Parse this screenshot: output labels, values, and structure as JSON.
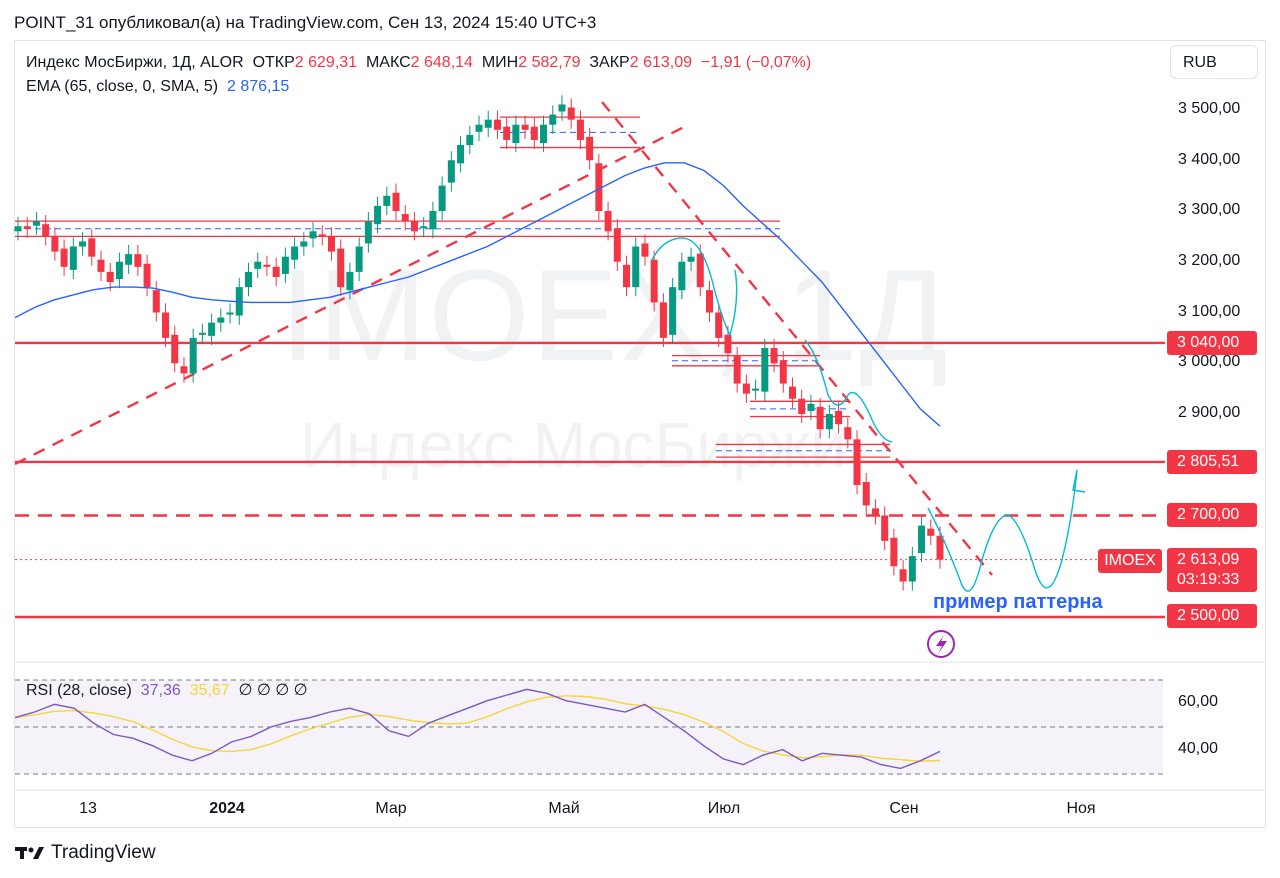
{
  "header": "POINT_31 опубликовал(а) на TradingView.com, Сен 13, 2024 15:40 UTC+3",
  "legend": {
    "symbol": "Индекс МосБиржи, 1Д, ALOR",
    "open_label": "ОТКР",
    "open": "2 629,31",
    "high_label": "МАКС",
    "high": "2 648,14",
    "low_label": "МИН",
    "low": "2 582,79",
    "close_label": "ЗАКР",
    "close": "2 613,09",
    "change": "−1,91 (−0,07%)",
    "ema_label": "EMA (65, close, 0, SMA, 5)",
    "ema_value": "2 876,15"
  },
  "currency": "RUB",
  "watermark": {
    "ticker": "IMOEX, 1Д",
    "name": "Индекс МосБиржи"
  },
  "price_axis": [
    "3 500,00",
    "3 400,00",
    "3 300,00",
    "3 200,00",
    "3 100,00",
    "3 000,00",
    "2 900,00"
  ],
  "price_tags": {
    "level_3040": "3 040,00",
    "level_2805": "2 805,51",
    "level_2700": "2 700,00",
    "last": "2 613,09",
    "countdown": "03:19:33",
    "level_2500": "2 500,00",
    "symbol_tag": "IMOEX"
  },
  "annotation": "пример паттерна",
  "rsi": {
    "label": "RSI (28, close)",
    "value1": "37,36",
    "value2": "35,67",
    "extras": "∅ ∅ ∅ ∅",
    "axis": [
      "60,00",
      "40,00"
    ]
  },
  "time_axis": [
    "13",
    "2024",
    "Мар",
    "Май",
    "Июл",
    "Сен",
    "Ноя"
  ],
  "footer": "TradingView",
  "colors": {
    "up": "#089981",
    "down": "#f23645",
    "ema": "#2962ff",
    "rsi": "#7e57c2",
    "rsi_ma": "#f5d63a",
    "level": "#f23645",
    "pattern": "#00bcd4"
  },
  "chart_data": {
    "type": "line",
    "series": [
      {
        "name": "Индекс МосБиржи",
        "values": [
          3270,
          3265,
          3280,
          3250,
          3220,
          3190,
          3230,
          3240,
          3210,
          3180,
          3160,
          3200,
          3215,
          3190,
          3150,
          3100,
          3050,
          3000,
          2980,
          3050,
          3060,
          3080,
          3090,
          3100,
          3150,
          3180,
          3200,
          3190,
          3170,
          3210,
          3230,
          3240,
          3260,
          3250,
          3220,
          3150,
          3180,
          3230,
          3280,
          3310,
          3330,
          3300,
          3280,
          3260,
          3270,
          3300,
          3350,
          3400,
          3430,
          3450,
          3470,
          3480,
          3460,
          3440,
          3470,
          3460,
          3440,
          3470,
          3490,
          3510,
          3480,
          3440,
          3400,
          3300,
          3260,
          3200,
          3150,
          3230,
          3210,
          3120,
          3050,
          3150,
          3200,
          3210,
          3150,
          3100,
          3050,
          3020,
          2960,
          2940,
          2950,
          3030,
          3000,
          2960,
          2930,
          2900,
          2920,
          2870,
          2900,
          2880,
          2850,
          2760,
          2720,
          2700,
          2650,
          2600,
          2570,
          2620,
          2680,
          2660,
          2613
        ]
      },
      {
        "name": "EMA (65, close, 0, SMA, 5)",
        "values": [
          3090,
          3110,
          3125,
          3135,
          3145,
          3150,
          3150,
          3148,
          3140,
          3130,
          3125,
          3122,
          3120,
          3120,
          3120,
          3125,
          3130,
          3140,
          3150,
          3160,
          3170,
          3185,
          3200,
          3215,
          3230,
          3250,
          3270,
          3290,
          3310,
          3330,
          3350,
          3370,
          3385,
          3395,
          3395,
          3380,
          3350,
          3310,
          3275,
          3240,
          3200,
          3160,
          3110,
          3060,
          3010,
          2960,
          2910,
          2876
        ]
      }
    ],
    "levels": [
      3040,
      2805.51,
      2700,
      2500
    ],
    "y_range": [
      2450,
      3550
    ],
    "x_ticks": [
      "13",
      "2024",
      "Мар",
      "Май",
      "Июл",
      "Сен",
      "Ноя"
    ],
    "rsi_values": [
      55,
      58,
      62,
      60,
      52,
      46,
      44,
      40,
      35,
      32,
      36,
      42,
      45,
      50,
      53,
      55,
      58,
      60,
      57,
      48,
      45,
      52,
      56,
      60,
      64,
      67,
      70,
      68,
      64,
      62,
      60,
      58,
      62,
      55,
      48,
      40,
      33,
      30,
      35,
      38,
      32,
      36,
      35,
      34,
      30,
      28,
      32,
      37
    ],
    "rsi_range": [
      25,
      75
    ]
  }
}
